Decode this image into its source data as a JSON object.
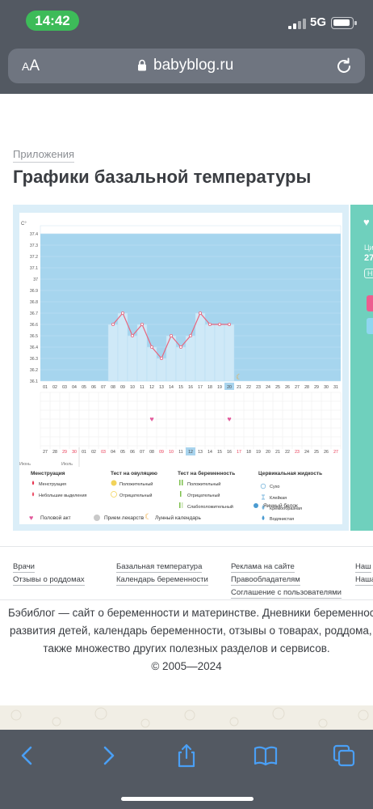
{
  "status": {
    "time": "14:42",
    "network": "5G"
  },
  "browser": {
    "aa_small": "A",
    "aa_large": "A",
    "url": "babyblog.ru"
  },
  "page": {
    "breadcrumb": "Приложения",
    "title": "Графики базальной температуры"
  },
  "chart_data": {
    "type": "line",
    "unit_label": "C°",
    "y_ticks": [
      "37.4",
      "37.3",
      "37.2",
      "37.1",
      "37",
      "36.9",
      "36.8",
      "36.7",
      "36.6",
      "36.5",
      "36.4",
      "36.3",
      "36.2",
      "36.1"
    ],
    "ylim": [
      36.1,
      37.4
    ],
    "days": [
      "01",
      "02",
      "03",
      "04",
      "05",
      "06",
      "07",
      "08",
      "09",
      "10",
      "11",
      "12",
      "13",
      "14",
      "15",
      "16",
      "17",
      "18",
      "19",
      "20",
      "21",
      "22",
      "23",
      "24",
      "25",
      "26",
      "27",
      "28",
      "29",
      "30",
      "31"
    ],
    "highlight_day": "20",
    "series": [
      {
        "x": [
          "08",
          "09",
          "10",
          "11",
          "12",
          "13",
          "14",
          "15",
          "16",
          "17",
          "18",
          "19",
          "20"
        ],
        "values": [
          36.6,
          36.7,
          36.5,
          36.6,
          36.4,
          36.3,
          36.5,
          36.4,
          36.5,
          36.7,
          36.6,
          36.6,
          36.6
        ]
      }
    ],
    "moon_day": "21",
    "intercourse_days": [
      "12",
      "20"
    ],
    "cycle_dates": [
      "27",
      "28",
      "29",
      "30",
      "01",
      "02",
      "03",
      "04",
      "05",
      "06",
      "07",
      "08",
      "09",
      "10",
      "11",
      "12",
      "13",
      "14",
      "15",
      "16",
      "17",
      "18",
      "19",
      "20",
      "21",
      "22",
      "23",
      "24",
      "25",
      "26",
      "27"
    ],
    "red_cycle_indices": [
      2,
      3,
      6,
      12,
      13,
      20,
      26,
      30
    ],
    "highlight_cycle_index": 15,
    "month_june": "Июнь",
    "month_july": "Июль",
    "colors": {
      "plot_bg": "#a6d5ee",
      "line": "#e8667e",
      "bar": "#cfe9f7",
      "red": "#e8334f",
      "highlight": "#a9d4ee"
    }
  },
  "legend": {
    "menstruation": {
      "title": "Менструация",
      "items": [
        "Менструация",
        "Небольшие выделения"
      ]
    },
    "ovulation": {
      "title": "Тест на овуляцию",
      "items": [
        "Положительный",
        "Отрицательный"
      ]
    },
    "pregnancy": {
      "title": "Тест на беременность",
      "items": [
        "Положительный",
        "Отрицательный",
        "Слабоположительный"
      ]
    },
    "cervical": {
      "title": "Цервикальная жидкость",
      "items": [
        "Сухо",
        "Клейкая",
        "Кремообразная",
        "Водянистая",
        "Яичный белок"
      ]
    },
    "bottom": [
      "Половой акт",
      "Прием лекарств",
      "Лунный календарь"
    ]
  },
  "side": {
    "line1": "Ци",
    "line2": "27",
    "line3": "Н"
  },
  "footer": {
    "col1": [
      "Врачи",
      "Отзывы о роддомах"
    ],
    "col2": [
      "Базальная температура",
      "Календарь беременности"
    ],
    "col3": [
      "Реклама на сайте",
      "Правообладателям",
      "Соглашение с пользователями"
    ],
    "col4": [
      "Наш",
      "Наша"
    ],
    "about_lines": [
      "Бэбиблог — сайт о беременности и материнстве. Дневники беременност",
      "развития детей, календарь беременности, отзывы о товарах, роддома, а",
      "также множество других полезных разделов и сервисов.",
      "© 2005—2024"
    ]
  }
}
